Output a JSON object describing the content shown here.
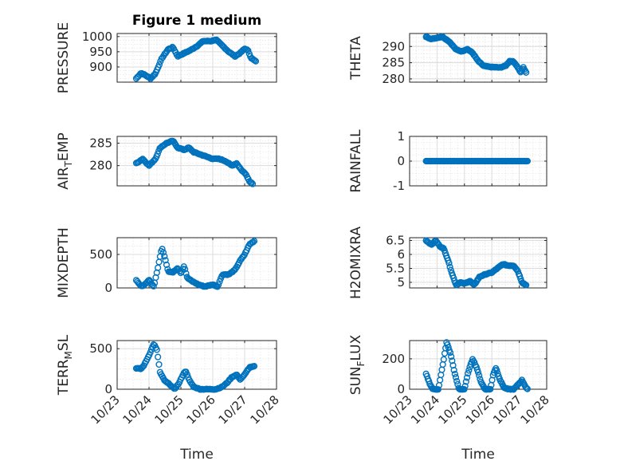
{
  "figure": {
    "title": "Figure 1 medium",
    "marker_color": "#0072BD",
    "xlabel": "Time",
    "xticks": [
      "10/23",
      "10/24",
      "10/25",
      "10/26",
      "10/27",
      "10/28"
    ]
  },
  "chart_data": [
    {
      "type": "scatter",
      "ylabel": "PRESSURE",
      "ylim": [
        850,
        1010
      ],
      "yticks": [
        900,
        950,
        1000
      ],
      "knots": [
        [
          23.6,
          862
        ],
        [
          23.75,
          880
        ],
        [
          23.9,
          872
        ],
        [
          24.05,
          862
        ],
        [
          24.2,
          878
        ],
        [
          24.4,
          928
        ],
        [
          24.6,
          958
        ],
        [
          24.75,
          965
        ],
        [
          24.9,
          935
        ],
        [
          25.1,
          945
        ],
        [
          25.3,
          955
        ],
        [
          25.5,
          968
        ],
        [
          25.7,
          985
        ],
        [
          25.95,
          985
        ],
        [
          26.1,
          990
        ],
        [
          26.3,
          970
        ],
        [
          26.5,
          950
        ],
        [
          26.7,
          935
        ],
        [
          26.85,
          945
        ],
        [
          27.0,
          960
        ],
        [
          27.1,
          955
        ],
        [
          27.2,
          930
        ],
        [
          27.35,
          918
        ]
      ]
    },
    {
      "type": "scatter",
      "ylabel": "THETA",
      "ylim": [
        279,
        294
      ],
      "yticks": [
        280,
        285,
        290
      ],
      "knots": [
        [
          23.6,
          293
        ],
        [
          23.8,
          292.3
        ],
        [
          24.0,
          292.7
        ],
        [
          24.2,
          293
        ],
        [
          24.45,
          291.5
        ],
        [
          24.7,
          289
        ],
        [
          24.9,
          288.5
        ],
        [
          25.1,
          289.2
        ],
        [
          25.3,
          288
        ],
        [
          25.5,
          285.5
        ],
        [
          25.7,
          284
        ],
        [
          25.9,
          283.7
        ],
        [
          26.1,
          283.6
        ],
        [
          26.3,
          283.5
        ],
        [
          26.5,
          284
        ],
        [
          26.65,
          285.5
        ],
        [
          26.8,
          285.3
        ],
        [
          26.95,
          283.5
        ],
        [
          27.05,
          282
        ],
        [
          27.15,
          283.5
        ],
        [
          27.25,
          282
        ]
      ]
    },
    {
      "type": "scatter",
      "ylabel": "AIR_TEMP",
      "ylabel_display": [
        "AIR",
        "T",
        "EMP"
      ],
      "ylim": [
        275.5,
        286.5
      ],
      "yticks": [
        280,
        285
      ],
      "knots": [
        [
          23.6,
          280.5
        ],
        [
          23.8,
          281.5
        ],
        [
          24.0,
          280
        ],
        [
          24.2,
          281.5
        ],
        [
          24.35,
          284
        ],
        [
          24.55,
          285
        ],
        [
          24.75,
          285.5
        ],
        [
          24.9,
          284
        ],
        [
          25.1,
          283.5
        ],
        [
          25.25,
          284
        ],
        [
          25.4,
          283
        ],
        [
          25.6,
          282.5
        ],
        [
          25.8,
          282
        ],
        [
          26.0,
          281.5
        ],
        [
          26.2,
          281.5
        ],
        [
          26.4,
          281
        ],
        [
          26.6,
          280
        ],
        [
          26.75,
          280.5
        ],
        [
          26.9,
          279
        ],
        [
          27.05,
          278
        ],
        [
          27.15,
          276.5
        ],
        [
          27.25,
          276
        ]
      ]
    },
    {
      "type": "scatter",
      "ylabel": "RAINFALL",
      "ylim": [
        -1,
        1
      ],
      "yticks": [
        -1,
        0,
        1
      ],
      "knots": [
        [
          23.6,
          0
        ],
        [
          27.3,
          0
        ]
      ]
    },
    {
      "type": "scatter",
      "ylabel": "MIXDEPTH",
      "ylim": [
        0,
        750
      ],
      "yticks": [
        0,
        500
      ],
      "knots": [
        [
          23.6,
          120
        ],
        [
          23.75,
          20
        ],
        [
          23.9,
          60
        ],
        [
          24.0,
          120
        ],
        [
          24.15,
          20
        ],
        [
          24.3,
          350
        ],
        [
          24.4,
          600
        ],
        [
          24.5,
          450
        ],
        [
          24.6,
          250
        ],
        [
          24.75,
          230
        ],
        [
          24.9,
          300
        ],
        [
          25.0,
          220
        ],
        [
          25.1,
          330
        ],
        [
          25.2,
          150
        ],
        [
          25.35,
          100
        ],
        [
          25.55,
          50
        ],
        [
          25.75,
          20
        ],
        [
          26.0,
          50
        ],
        [
          26.15,
          20
        ],
        [
          26.3,
          200
        ],
        [
          26.5,
          200
        ],
        [
          26.7,
          270
        ],
        [
          26.85,
          400
        ],
        [
          27.0,
          500
        ],
        [
          27.15,
          650
        ],
        [
          27.3,
          700
        ]
      ]
    },
    {
      "type": "scatter",
      "ylabel": "H2OMIXRA",
      "ylim": [
        4.8,
        6.6
      ],
      "yticks": [
        5,
        5.5,
        6,
        6.5
      ],
      "knots": [
        [
          23.6,
          6.5
        ],
        [
          23.8,
          6.35
        ],
        [
          23.95,
          6.5
        ],
        [
          24.1,
          6.3
        ],
        [
          24.25,
          6.2
        ],
        [
          24.4,
          5.8
        ],
        [
          24.55,
          5.3
        ],
        [
          24.7,
          4.9
        ],
        [
          24.85,
          5.0
        ],
        [
          25.0,
          4.95
        ],
        [
          25.2,
          5.05
        ],
        [
          25.35,
          4.9
        ],
        [
          25.55,
          5.2
        ],
        [
          25.8,
          5.3
        ],
        [
          26.0,
          5.35
        ],
        [
          26.2,
          5.5
        ],
        [
          26.4,
          5.65
        ],
        [
          26.6,
          5.6
        ],
        [
          26.8,
          5.6
        ],
        [
          26.95,
          5.4
        ],
        [
          27.1,
          5.0
        ],
        [
          27.25,
          4.9
        ]
      ]
    },
    {
      "type": "scatter",
      "ylabel": "TERR_MSL",
      "ylabel_display": [
        "TERR",
        "M",
        "SL"
      ],
      "ylim": [
        0,
        600
      ],
      "yticks": [
        0,
        500
      ],
      "knots": [
        [
          23.6,
          260
        ],
        [
          23.75,
          250
        ],
        [
          23.85,
          300
        ],
        [
          24.0,
          420
        ],
        [
          24.15,
          560
        ],
        [
          24.25,
          480
        ],
        [
          24.35,
          200
        ],
        [
          24.5,
          100
        ],
        [
          24.65,
          60
        ],
        [
          24.8,
          0
        ],
        [
          24.95,
          80
        ],
        [
          25.05,
          170
        ],
        [
          25.15,
          230
        ],
        [
          25.25,
          120
        ],
        [
          25.4,
          30
        ],
        [
          25.6,
          0
        ],
        [
          25.9,
          0
        ],
        [
          26.1,
          0
        ],
        [
          26.3,
          30
        ],
        [
          26.45,
          80
        ],
        [
          26.6,
          150
        ],
        [
          26.75,
          180
        ],
        [
          26.85,
          120
        ],
        [
          27.0,
          180
        ],
        [
          27.15,
          270
        ],
        [
          27.3,
          280
        ]
      ]
    },
    {
      "type": "scatter",
      "ylabel": "SUN_FLUX",
      "ylabel_display": [
        "SUN",
        "F",
        "LUX"
      ],
      "ylim": [
        0,
        320
      ],
      "yticks": [
        0,
        200
      ],
      "knots": [
        [
          23.6,
          100
        ],
        [
          23.75,
          30
        ],
        [
          23.85,
          0
        ],
        [
          24.05,
          0
        ],
        [
          24.2,
          150
        ],
        [
          24.35,
          310
        ],
        [
          24.5,
          230
        ],
        [
          24.65,
          100
        ],
        [
          24.8,
          0
        ],
        [
          25.0,
          0
        ],
        [
          25.15,
          120
        ],
        [
          25.3,
          200
        ],
        [
          25.45,
          140
        ],
        [
          25.6,
          50
        ],
        [
          25.75,
          0
        ],
        [
          25.95,
          0
        ],
        [
          26.05,
          100
        ],
        [
          26.15,
          140
        ],
        [
          26.3,
          60
        ],
        [
          26.45,
          10
        ],
        [
          26.6,
          0
        ],
        [
          26.8,
          0
        ],
        [
          26.95,
          30
        ],
        [
          27.1,
          60
        ],
        [
          27.25,
          10
        ],
        [
          27.3,
          0
        ]
      ]
    }
  ]
}
